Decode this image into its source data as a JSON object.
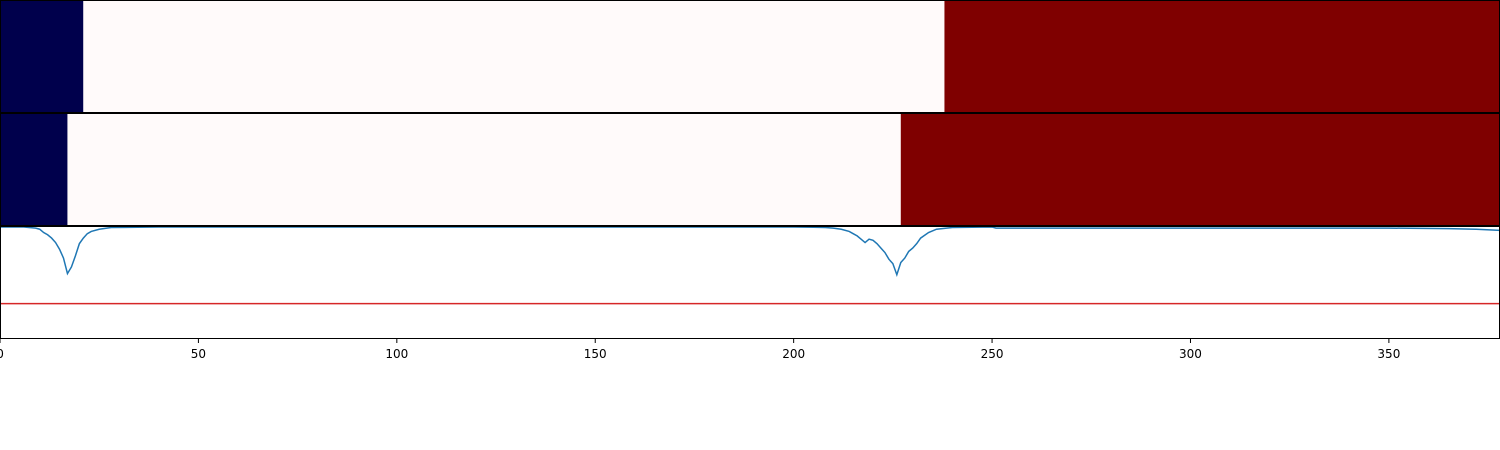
{
  "chart_data": [
    {
      "type": "heatmap",
      "name": "segmentation-bar-1",
      "xlim": [
        0,
        378
      ],
      "segments": [
        {
          "start": 0,
          "end": 21,
          "color": "#00004c"
        },
        {
          "start": 21,
          "end": 238,
          "color": "#fffafa"
        },
        {
          "start": 238,
          "end": 378,
          "color": "#7f0000"
        }
      ]
    },
    {
      "type": "heatmap",
      "name": "segmentation-bar-2",
      "xlim": [
        0,
        378
      ],
      "segments": [
        {
          "start": 0,
          "end": 17,
          "color": "#00004c"
        },
        {
          "start": 17,
          "end": 227,
          "color": "#fffafa"
        },
        {
          "start": 227,
          "end": 378,
          "color": "#7f0000"
        }
      ]
    },
    {
      "type": "line",
      "name": "score-line-plot",
      "xlim": [
        0,
        378
      ],
      "ylim": [
        0,
        1
      ],
      "threshold": 0.31,
      "threshold_color": "#d62728",
      "line_color": "#1f77b4",
      "xticks": [
        0,
        50,
        100,
        150,
        200,
        250,
        300,
        350
      ],
      "xtick_labels": [
        "0",
        "50",
        "100",
        "150",
        "200",
        "250",
        "300",
        "350"
      ],
      "series": [
        {
          "name": "score",
          "x": [
            0,
            6,
            9,
            10,
            11,
            12,
            13,
            14,
            15,
            16,
            17,
            18,
            19,
            20,
            21,
            22,
            23,
            25,
            28,
            40,
            100,
            150,
            200,
            205,
            208,
            210,
            212,
            214,
            215,
            216,
            217,
            218,
            219,
            220,
            221,
            222,
            223,
            224,
            225,
            226,
            227,
            228,
            229,
            230,
            231,
            232,
            234,
            236,
            240,
            250,
            251,
            300,
            330,
            350,
            365,
            372,
            378
          ],
          "y": [
            1.0,
            1.0,
            0.99,
            0.98,
            0.95,
            0.93,
            0.9,
            0.86,
            0.8,
            0.72,
            0.58,
            0.64,
            0.74,
            0.85,
            0.9,
            0.94,
            0.96,
            0.98,
            0.995,
            1.0,
            1.0,
            1.0,
            1.0,
            0.998,
            0.995,
            0.99,
            0.98,
            0.96,
            0.94,
            0.92,
            0.89,
            0.86,
            0.89,
            0.88,
            0.85,
            0.81,
            0.77,
            0.71,
            0.67,
            0.57,
            0.68,
            0.72,
            0.78,
            0.81,
            0.85,
            0.9,
            0.95,
            0.98,
            0.995,
            1.0,
            0.99,
            0.99,
            0.99,
            0.99,
            0.985,
            0.98,
            0.97
          ]
        }
      ]
    }
  ]
}
